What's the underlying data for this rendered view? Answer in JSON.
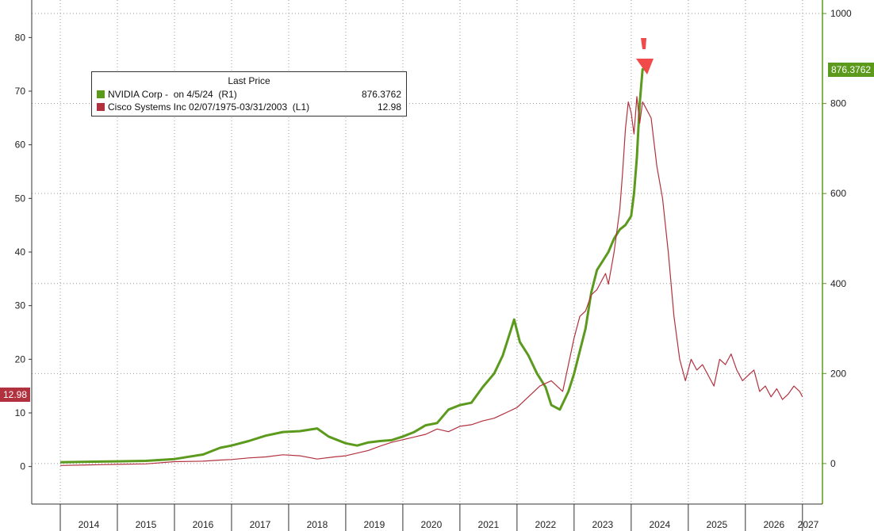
{
  "chart_data": {
    "type": "line",
    "legend": {
      "title": "Last Price",
      "items": [
        {
          "name": "NVIDIA Corp -  on 4/5/24  (R1)",
          "value": "876.3762",
          "color": "#5b9a1d",
          "axis": "right"
        },
        {
          "name": "Cisco Systems Inc 02/07/1975-03/31/2003  (L1)",
          "value": "12.98",
          "color": "#b2313e",
          "axis": "left"
        }
      ],
      "position": "top-left"
    },
    "x_ticks": [
      "2014",
      "2015",
      "2016",
      "2017",
      "2018",
      "2019",
      "2020",
      "2021",
      "2022",
      "2023",
      "2024",
      "2025",
      "2026",
      "2027"
    ],
    "left_axis": {
      "range": [
        -7,
        87
      ],
      "ticks": [
        "0",
        "10",
        "20",
        "30",
        "40",
        "50",
        "60",
        "70",
        "80"
      ]
    },
    "right_axis": {
      "range": [
        -90,
        1030
      ],
      "ticks": [
        "0",
        "200",
        "400",
        "600",
        "800",
        "1000"
      ]
    },
    "last_labels": {
      "right": "876.3762",
      "left": "12.98"
    },
    "series": [
      {
        "name": "NVIDIA Corp -  on 4/5/24  (R1)",
        "axis": "right",
        "color": "#5b9a1d",
        "x": [
          2014.0,
          2014.5,
          2015.0,
          2015.5,
          2016.0,
          2016.5,
          2016.8,
          2017.0,
          2017.3,
          2017.6,
          2017.9,
          2018.2,
          2018.5,
          2018.7,
          2018.8,
          2019.0,
          2019.2,
          2019.4,
          2019.6,
          2019.8,
          2020.0,
          2020.2,
          2020.4,
          2020.6,
          2020.8,
          2021.0,
          2021.2,
          2021.4,
          2021.6,
          2021.75,
          2021.85,
          2021.95,
          2022.05,
          2022.2,
          2022.35,
          2022.5,
          2022.6,
          2022.75,
          2022.9,
          2023.0,
          2023.1,
          2023.2,
          2023.3,
          2023.4,
          2023.5,
          2023.6,
          2023.7,
          2023.8,
          2023.9,
          2024.0,
          2024.05,
          2024.1,
          2024.15,
          2024.2,
          2024.25
        ],
        "y": [
          3,
          4,
          5,
          6,
          10,
          20,
          35,
          40,
          50,
          62,
          70,
          72,
          78,
          60,
          55,
          45,
          40,
          47,
          50,
          52,
          60,
          70,
          85,
          90,
          120,
          130,
          135,
          170,
          200,
          240,
          280,
          320,
          270,
          240,
          200,
          170,
          130,
          120,
          160,
          200,
          250,
          300,
          380,
          430,
          450,
          470,
          500,
          520,
          530,
          550,
          600,
          680,
          800,
          876,
          876
        ]
      },
      {
        "name": "Cisco Systems Inc 02/07/1975-03/31/2003  (L1)",
        "axis": "left",
        "color": "#b2313e",
        "x": [
          2014.0,
          2014.5,
          2015.0,
          2015.5,
          2016.0,
          2016.5,
          2016.8,
          2017.0,
          2017.3,
          2017.6,
          2017.9,
          2018.2,
          2018.5,
          2018.8,
          2019.0,
          2019.2,
          2019.4,
          2019.6,
          2019.8,
          2020.0,
          2020.2,
          2020.4,
          2020.6,
          2020.8,
          2021.0,
          2021.2,
          2021.4,
          2021.6,
          2021.8,
          2022.0,
          2022.2,
          2022.4,
          2022.6,
          2022.8,
          2022.9,
          2023.0,
          2023.1,
          2023.2,
          2023.3,
          2023.4,
          2023.5,
          2023.55,
          2023.6,
          2023.65,
          2023.7,
          2023.75,
          2023.8,
          2023.85,
          2023.9,
          2023.95,
          2024.0,
          2024.05,
          2024.1,
          2024.15,
          2024.2,
          2024.25,
          2024.35,
          2024.45,
          2024.55,
          2024.65,
          2024.75,
          2024.85,
          2024.95,
          2025.05,
          2025.15,
          2025.25,
          2025.35,
          2025.45,
          2025.55,
          2025.65,
          2025.75,
          2025.85,
          2025.95,
          2026.05,
          2026.15,
          2026.25,
          2026.35,
          2026.45,
          2026.55,
          2026.65,
          2026.75,
          2026.85,
          2026.95,
          2027.0
        ],
        "y": [
          0.2,
          0.3,
          0.4,
          0.5,
          0.9,
          1.0,
          1.2,
          1.3,
          1.6,
          1.8,
          2.2,
          2.0,
          1.4,
          1.8,
          2.0,
          2.5,
          3.0,
          3.8,
          4.5,
          5.0,
          5.5,
          6.0,
          7.0,
          6.5,
          7.5,
          7.8,
          8.5,
          9.0,
          10.0,
          11.0,
          13.0,
          15.0,
          16.0,
          14.0,
          19.0,
          24.0,
          28.0,
          29.0,
          32.0,
          33.0,
          35.0,
          36.0,
          34.0,
          37.0,
          40.0,
          44.0,
          48.0,
          55.0,
          63.0,
          68.0,
          66.0,
          62.0,
          69.0,
          64.0,
          68.0,
          67.0,
          65.0,
          56.0,
          50.0,
          40.0,
          28.0,
          20.0,
          16.0,
          20.0,
          18.0,
          19.0,
          17.0,
          15.0,
          20.0,
          19.0,
          21.0,
          18.0,
          16.0,
          17.0,
          18.0,
          14.0,
          15.0,
          13.0,
          14.5,
          12.5,
          13.5,
          15.0,
          14.0,
          13.0
        ]
      }
    ],
    "annotation": "red-down-arrow"
  }
}
